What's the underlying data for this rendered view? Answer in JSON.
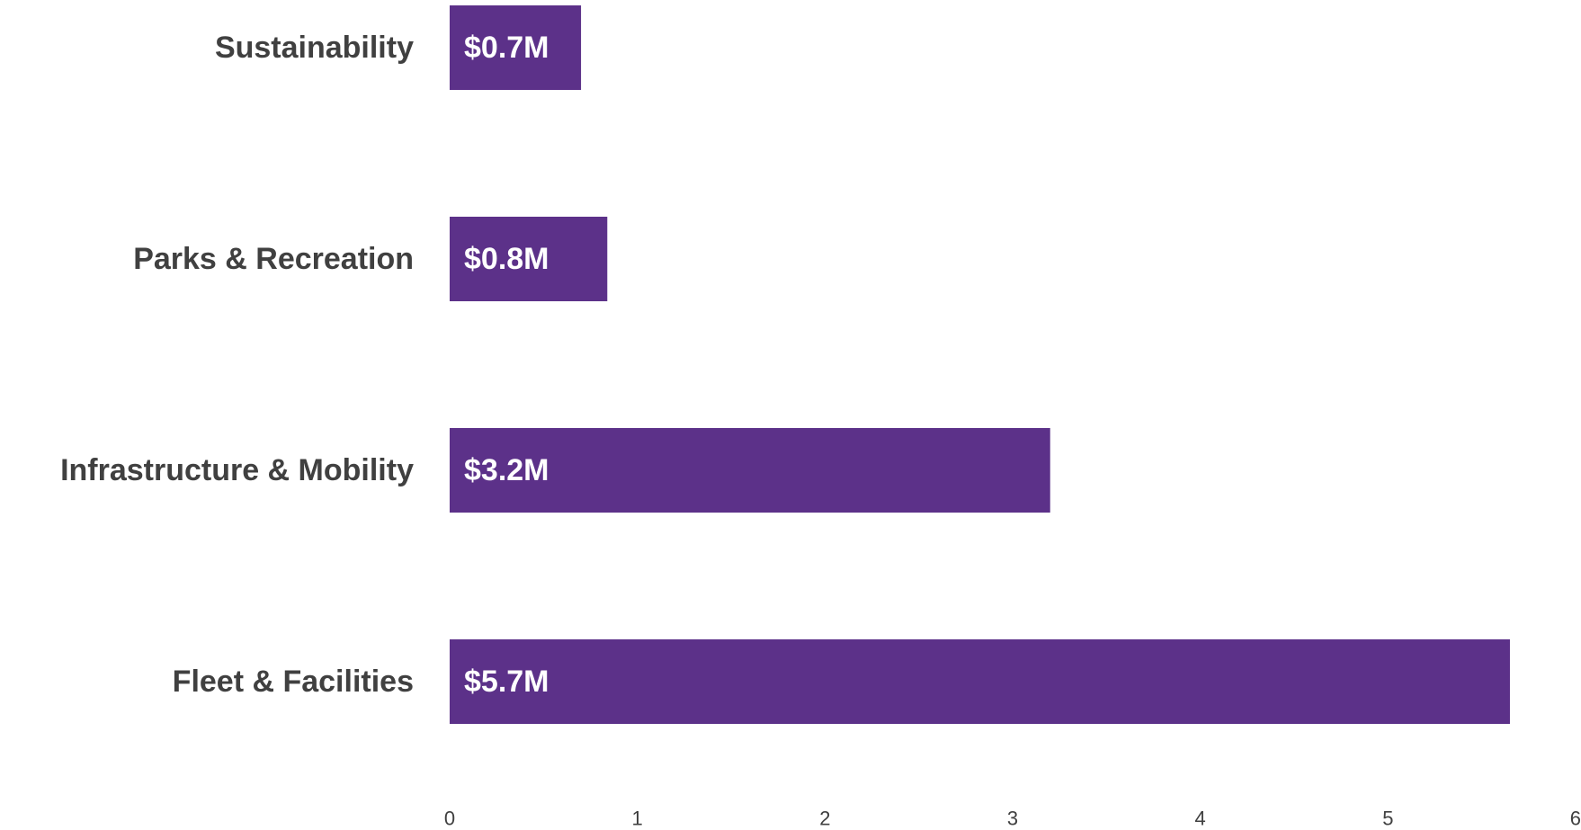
{
  "chart_data": {
    "type": "bar",
    "orientation": "horizontal",
    "categories": [
      "Sustainability",
      "Parks & Recreation",
      "Infrastructure & Mobility",
      "Fleet & Facilities"
    ],
    "values": [
      0.7,
      0.84,
      3.2,
      5.65
    ],
    "data_labels": [
      "$0.7M",
      "$0.8M",
      "$3.2M",
      "$5.7M"
    ],
    "xticks": [
      "0",
      "1",
      "2",
      "3",
      "4",
      "5",
      "6"
    ],
    "xlim": [
      0,
      6
    ],
    "title": "",
    "xlabel": "",
    "ylabel": "",
    "grid": false,
    "legend": "none"
  },
  "colors": {
    "bar": "#5c3189",
    "bar_label": "#ffffff",
    "category_label": "#404040",
    "tick_label": "#404040"
  }
}
